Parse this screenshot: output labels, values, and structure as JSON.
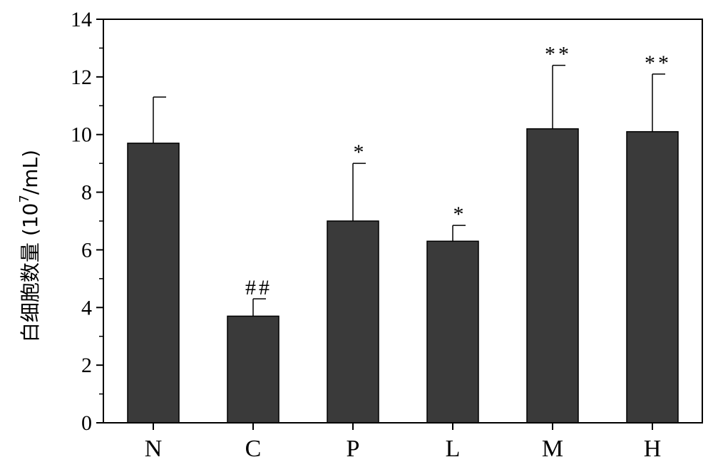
{
  "chart_data": {
    "type": "bar",
    "categories": [
      "N",
      "C",
      "P",
      "L",
      "M",
      "H"
    ],
    "values": [
      9.7,
      3.7,
      7.0,
      6.3,
      10.2,
      10.1
    ],
    "errors": [
      1.6,
      0.6,
      2.0,
      0.55,
      2.2,
      2.0
    ],
    "annotations": [
      "",
      "##",
      "*",
      "*",
      "**",
      "**"
    ],
    "ylabel_main": "白细胞数量 (10",
    "ylabel_sup": "7",
    "ylabel_end": "/mL)",
    "xlabel": "",
    "ylim": [
      0,
      14
    ],
    "yticks": [
      0,
      2,
      4,
      6,
      8,
      10,
      12,
      14
    ],
    "bar_color": "#3a3a3a",
    "grid": false
  }
}
